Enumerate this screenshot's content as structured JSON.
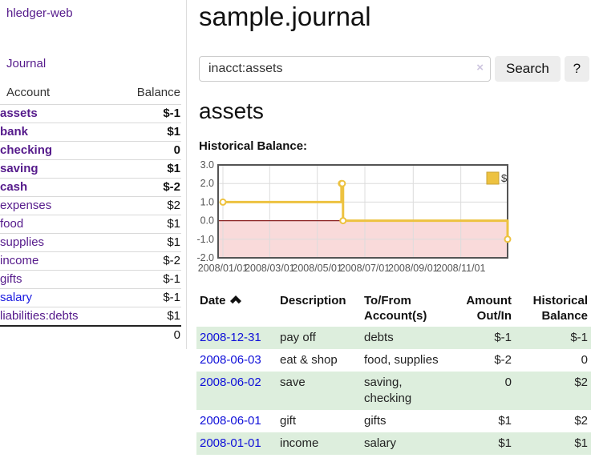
{
  "app": {
    "brand": "hledger-web",
    "nav": {
      "journal": "Journal"
    }
  },
  "sidebar": {
    "header": {
      "account": "Account",
      "balance": "Balance"
    },
    "accounts": [
      {
        "name": "assets",
        "balance": "$-1"
      },
      {
        "name": "bank",
        "balance": "$1"
      },
      {
        "name": "checking",
        "balance": "0"
      },
      {
        "name": "saving",
        "balance": "$1"
      },
      {
        "name": "cash",
        "balance": "$-2"
      },
      {
        "name": "expenses",
        "balance": "$2"
      },
      {
        "name": "food",
        "balance": "$1"
      },
      {
        "name": "supplies",
        "balance": "$1"
      },
      {
        "name": "income",
        "balance": "$-2"
      },
      {
        "name": "gifts",
        "balance": "$-1"
      },
      {
        "name": "salary",
        "balance": "$-1"
      },
      {
        "name": "liabilities:debts",
        "balance": "$1"
      }
    ],
    "total": "0"
  },
  "main": {
    "title": "sample.journal",
    "search": {
      "value": "inacct:assets",
      "clear_icon": "×",
      "search_button": "Search",
      "help_button": "?"
    },
    "account_heading": "assets",
    "chart_heading": "Historical Balance:"
  },
  "chart_data": {
    "type": "line",
    "step": true,
    "title": "Historical Balance",
    "series": [
      {
        "name": "$",
        "color": "#edc240",
        "points": [
          [
            "2008-01-01",
            1
          ],
          [
            "2008-06-01",
            2
          ],
          [
            "2008-06-02",
            2
          ],
          [
            "2008-06-03",
            0
          ],
          [
            "2008-12-31",
            -1
          ]
        ]
      }
    ],
    "xlim": [
      "2008-01-01",
      "2008-12-31"
    ],
    "ylim": [
      -2,
      3
    ],
    "y_ticks": [
      {
        "v": 3,
        "label": "3.0"
      },
      {
        "v": 2,
        "label": "2.0"
      },
      {
        "v": 1,
        "label": "1.0"
      },
      {
        "v": 0,
        "label": "0.0"
      },
      {
        "v": -1,
        "label": "-1.0"
      },
      {
        "v": -2,
        "label": "-2.0"
      }
    ],
    "x_ticks": [
      {
        "date": "2008-01-01",
        "label": "2008/01/01"
      },
      {
        "date": "2008-03-01",
        "label": "2008/03/01"
      },
      {
        "date": "2008-05-01",
        "label": "2008/05/01"
      },
      {
        "date": "2008-07-01",
        "label": "2008/07/01"
      },
      {
        "date": "2008-09-01",
        "label": "2008/09/01"
      },
      {
        "date": "2008-11-01",
        "label": "2008/11/01"
      }
    ],
    "legend": {
      "label": "$",
      "position": "top-right"
    },
    "grid": true,
    "colors": {
      "line": "#edc240",
      "legend_border": "#c9a334",
      "marker_fill": "#ffffff",
      "gridline": "#dcdcdc",
      "border": "#545454",
      "negative_fill": "#f9dada",
      "zero_line": "#8b2222",
      "tick_text": "#545454"
    }
  },
  "register": {
    "columns": [
      "Date",
      "Description",
      "To/From Account(s)",
      "Amount Out/In",
      "Historical Balance"
    ],
    "sort_icon": "chevron-up-icon",
    "rows": [
      {
        "date": "2008-12-31",
        "description": "pay off",
        "accounts": "debts",
        "amount": "$-1",
        "balance": "$-1"
      },
      {
        "date": "2008-06-03",
        "description": "eat & shop",
        "accounts": "food, supplies",
        "amount": "$-2",
        "balance": "0"
      },
      {
        "date": "2008-06-02",
        "description": "save",
        "accounts": "saving, checking",
        "amount": "0",
        "balance": "$2"
      },
      {
        "date": "2008-06-01",
        "description": "gift",
        "accounts": "gifts",
        "amount": "$1",
        "balance": "$2"
      },
      {
        "date": "2008-01-01",
        "description": "income",
        "accounts": "salary",
        "amount": "$1",
        "balance": "$1"
      }
    ]
  }
}
